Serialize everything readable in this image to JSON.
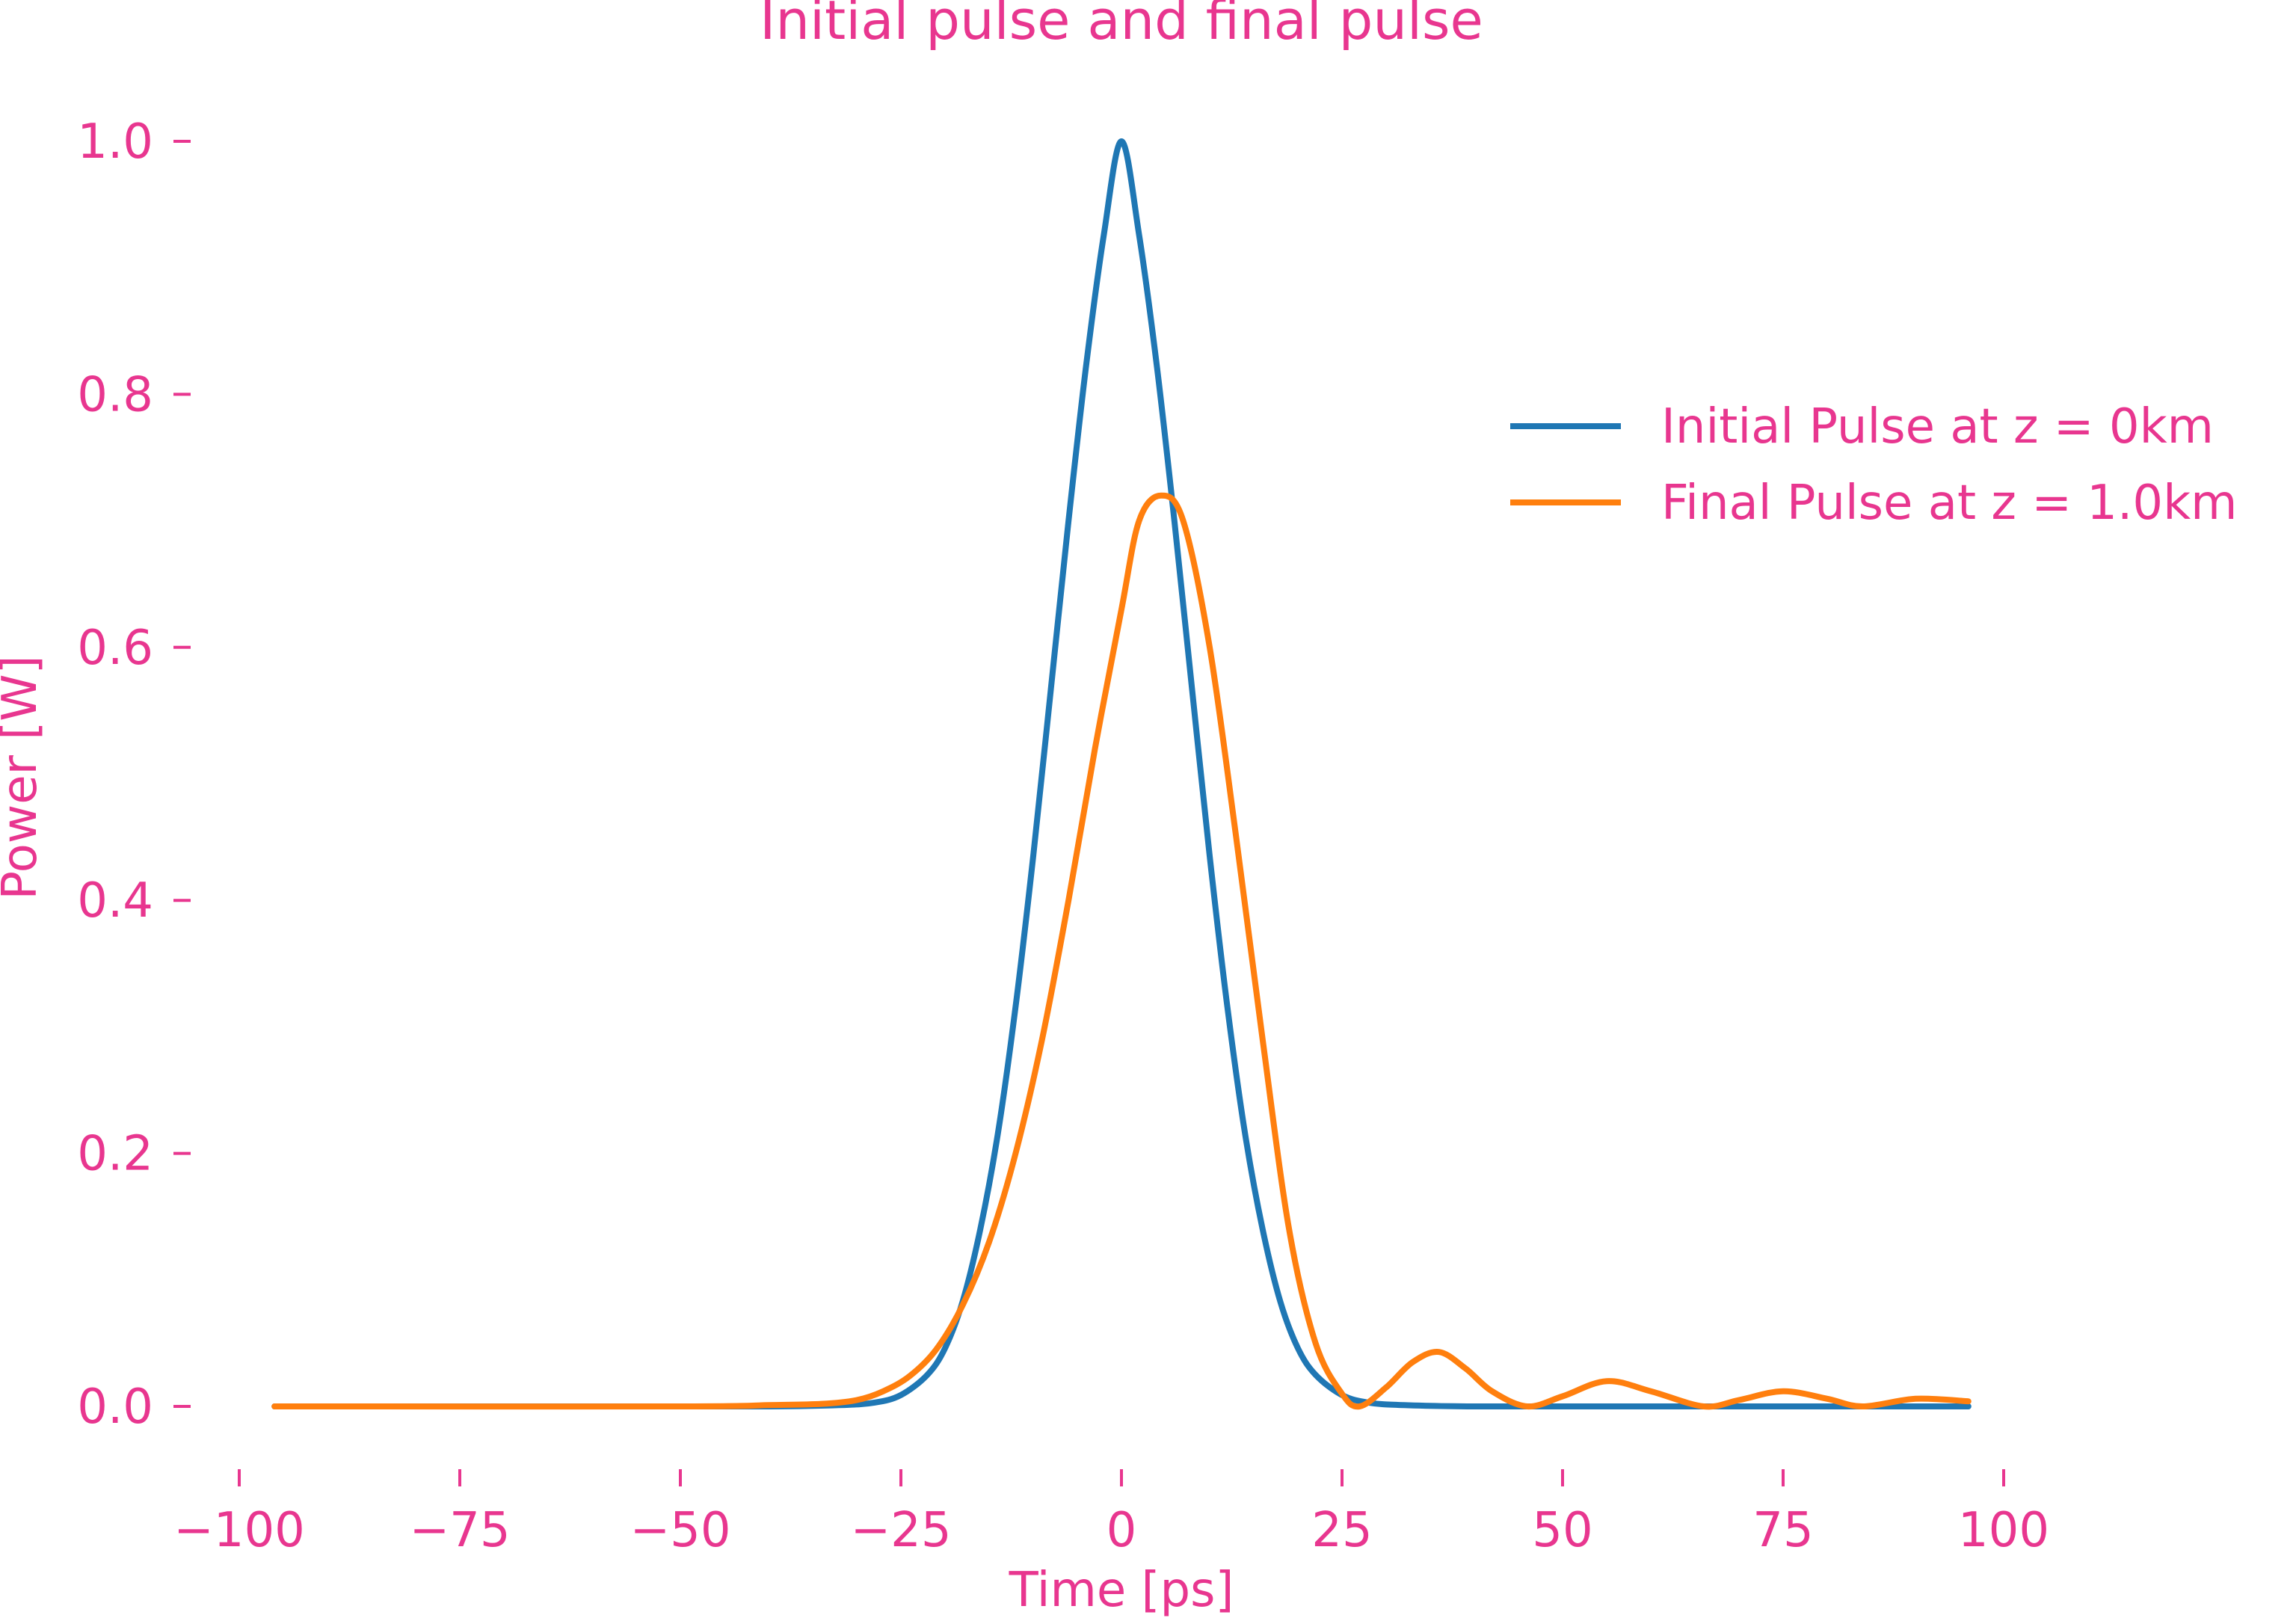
{
  "chart_data": {
    "type": "line",
    "title": "Initial pulse and final pulse",
    "xlabel": "Time [ps]",
    "ylabel": "Power [W]",
    "xlim": [
      -105,
      105
    ],
    "ylim": [
      -0.04,
      1.04
    ],
    "xticks": [
      -100,
      -75,
      -50,
      -25,
      0,
      25,
      50,
      75,
      100
    ],
    "xtick_labels": [
      "−100",
      "−75",
      "−50",
      "−25",
      "0",
      "25",
      "50",
      "75",
      "100"
    ],
    "yticks": [
      0.0,
      0.2,
      0.4,
      0.6,
      0.8,
      1.0
    ],
    "ytick_labels": [
      "0.0",
      "0.2",
      "0.4",
      "0.6",
      "0.8",
      "1.0"
    ],
    "grid": false,
    "legend_position": "upper-right",
    "text_color": "#e8368f",
    "series": [
      {
        "name": "Initial Pulse at z = 0km",
        "color": "#1f77b4",
        "x": [
          -96,
          -60,
          -40,
          -32,
          -28,
          -25,
          -22,
          -20,
          -18,
          -16,
          -14,
          -12,
          -10,
          -8,
          -6,
          -4,
          -2,
          0,
          2,
          4,
          6,
          8,
          10,
          12,
          14,
          16,
          18,
          20,
          22,
          25,
          28,
          32,
          40,
          60,
          96
        ],
        "y": [
          0,
          0,
          0,
          0.001,
          0.003,
          0.009,
          0.025,
          0.046,
          0.083,
          0.14,
          0.216,
          0.316,
          0.435,
          0.567,
          0.7,
          0.823,
          0.926,
          1.0,
          0.926,
          0.823,
          0.7,
          0.567,
          0.435,
          0.316,
          0.216,
          0.14,
          0.083,
          0.046,
          0.025,
          0.009,
          0.003,
          0.001,
          0,
          0,
          0
        ]
      },
      {
        "name": "Final Pulse at z = 1.0km",
        "color": "#ff7f0e",
        "x": [
          -96,
          -50,
          -40,
          -34,
          -30,
          -27,
          -24,
          -21,
          -18,
          -15,
          -12,
          -9,
          -6,
          -3,
          0,
          2,
          4.5,
          7,
          10,
          13,
          16,
          19,
          22,
          25,
          27,
          30,
          33,
          36,
          39,
          42,
          46,
          50,
          55,
          60,
          66,
          70,
          75,
          80,
          84,
          90,
          96
        ],
        "y": [
          0,
          0,
          0.001,
          0.002,
          0.005,
          0.012,
          0.024,
          0.045,
          0.08,
          0.13,
          0.2,
          0.29,
          0.4,
          0.52,
          0.63,
          0.7,
          0.72,
          0.7,
          0.6,
          0.45,
          0.29,
          0.14,
          0.05,
          0.01,
          0.0,
          0.015,
          0.035,
          0.043,
          0.03,
          0.012,
          0.0,
          0.008,
          0.02,
          0.012,
          0.0,
          0.005,
          0.012,
          0.006,
          0.0,
          0.006,
          0.004
        ]
      }
    ]
  }
}
